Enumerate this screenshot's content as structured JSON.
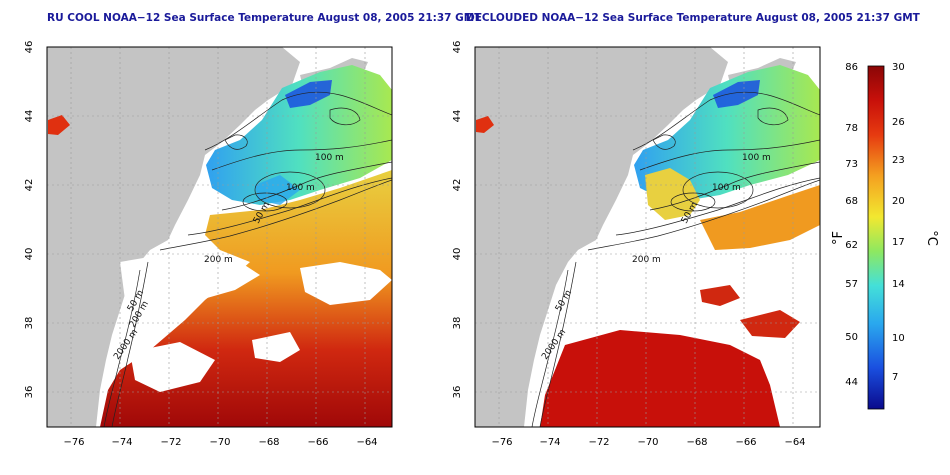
{
  "panels": [
    {
      "title": "RU COOL NOAA−12 Sea Surface Temperature August 08, 2005 21:37 GMT",
      "contour_labels": [
        "100 m",
        "100 m",
        "200 m",
        "50 m",
        "2000 m",
        "50 m",
        "200 m"
      ]
    },
    {
      "title": "DECLOUDED NOAA−12 Sea Surface Temperature August 08, 2005 21:37 GMT",
      "contour_labels": [
        "100 m",
        "100 m",
        "200 m",
        "50 m",
        "2000 m",
        "50 m"
      ]
    }
  ],
  "axes": {
    "x_ticks": [
      "−76",
      "−74",
      "−72",
      "−70",
      "−68",
      "−66",
      "−64"
    ],
    "y_ticks": [
      "46",
      "44",
      "42",
      "40",
      "38",
      "36"
    ]
  },
  "colorbar": {
    "f_label": "°F",
    "c_label": "°C",
    "f_ticks": [
      "86",
      "78",
      "73",
      "68",
      "62",
      "57",
      "50",
      "44"
    ],
    "c_ticks": [
      "30",
      "26",
      "23",
      "20",
      "17",
      "14",
      "10",
      "7"
    ],
    "colors": [
      "#0a0a8c",
      "#1a4fe0",
      "#2aa8ee",
      "#44e0d8",
      "#8ee860",
      "#f2e830",
      "#f4a020",
      "#e63a10",
      "#c8100a",
      "#8a0606"
    ]
  },
  "colors": {
    "land": "#c4c4c4",
    "title": "#1a1a9a",
    "contour": "#222222"
  }
}
